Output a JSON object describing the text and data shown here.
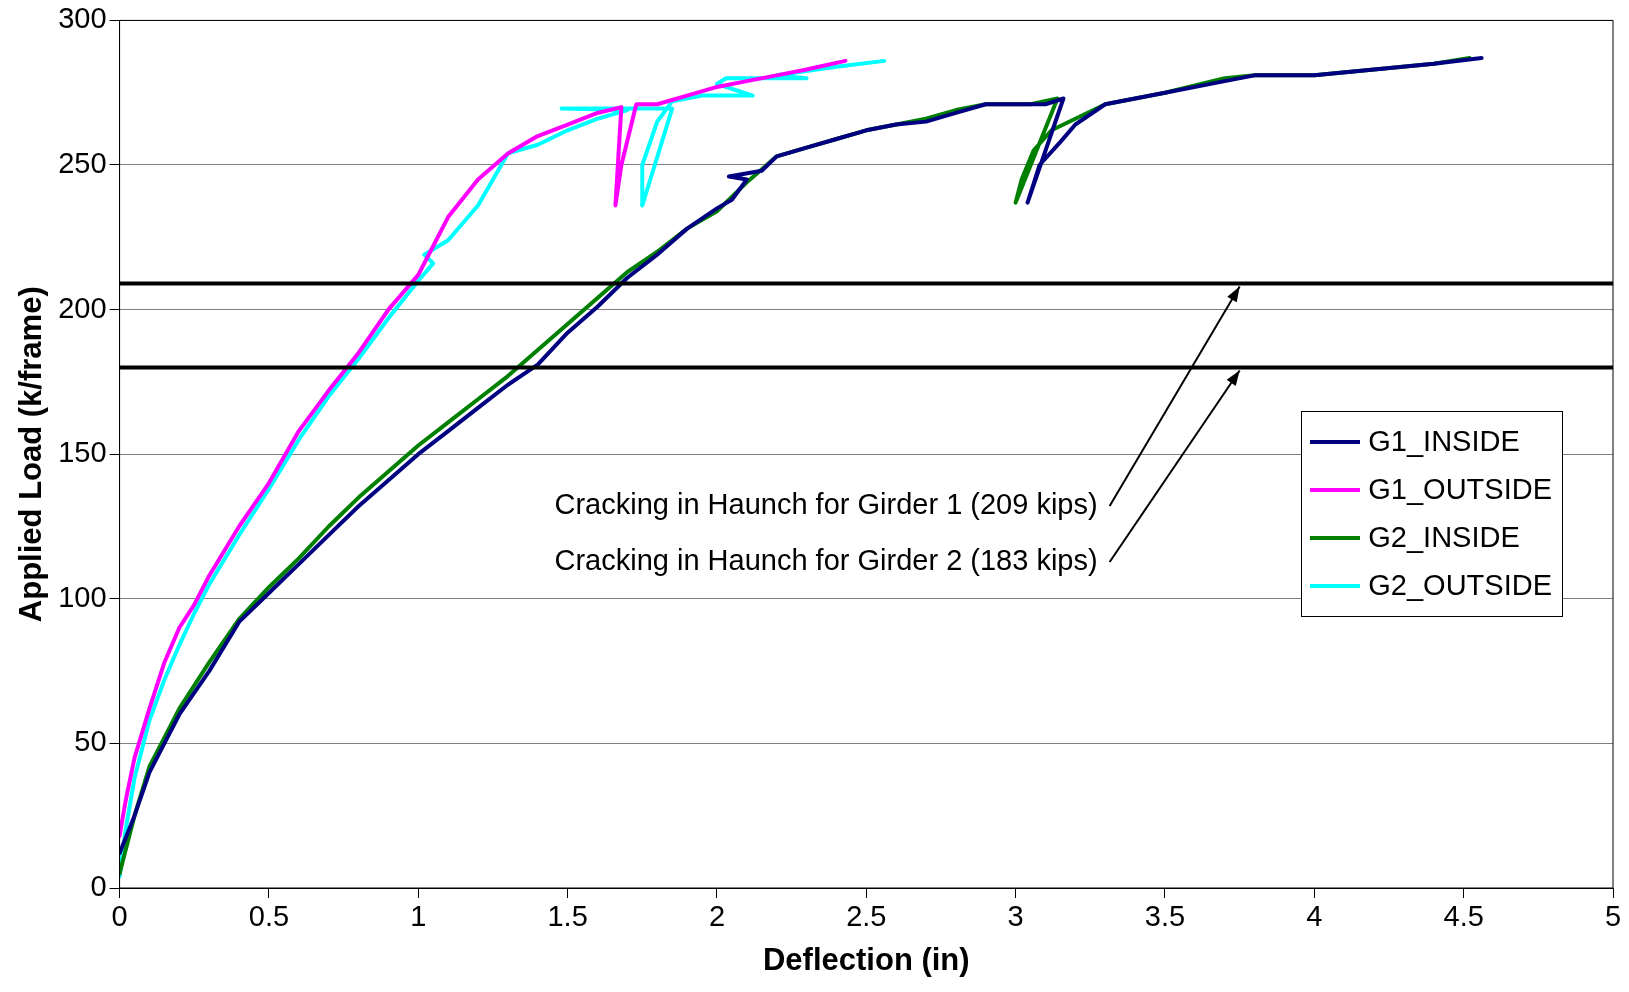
{
  "chart_data": {
    "type": "line",
    "xlabel": "Deflection (in)",
    "ylabel": "Applied Load (k/frame)",
    "xlim": [
      0,
      5
    ],
    "xticks": [
      0,
      0.5,
      1,
      1.5,
      2,
      2.5,
      3,
      3.5,
      4,
      4.5,
      5
    ],
    "ylim": [
      0,
      300
    ],
    "yticks": [
      0,
      50,
      100,
      150,
      200,
      250,
      300
    ],
    "grid": "y",
    "legend": "right",
    "marker": "none",
    "line_style": "solid",
    "series": [
      {
        "name": "G1_INSIDE",
        "color": "#000080",
        "x": [
          0,
          0.05,
          0.1,
          0.15,
          0.2,
          0.3,
          0.4,
          0.5,
          0.6,
          0.7,
          0.8,
          0.9,
          1.0,
          1.1,
          1.2,
          1.3,
          1.4,
          1.5,
          1.6,
          1.7,
          1.8,
          1.9,
          2.0,
          2.05,
          2.1,
          2.04,
          2.15,
          2.2,
          2.3,
          2.4,
          2.5,
          2.6,
          2.7,
          2.8,
          2.9,
          3.1,
          3.16,
          3.04,
          3.08,
          3.15,
          3.2,
          3.3,
          3.5,
          3.7,
          3.8,
          4.0,
          4.2,
          4.4,
          4.56
        ],
        "values": [
          12,
          25,
          40,
          50,
          60,
          75,
          92,
          102,
          112,
          122,
          132,
          141,
          150,
          158,
          166,
          174,
          181,
          192,
          201,
          211,
          219,
          228,
          235,
          238,
          245,
          246,
          248,
          253,
          256,
          259,
          262,
          264,
          265,
          268,
          271,
          271,
          273,
          237,
          250,
          258,
          264,
          271,
          275,
          279,
          281,
          281,
          283,
          285,
          287
        ]
      },
      {
        "name": "G1_OUTSIDE",
        "color": "#ff00ff",
        "x": [
          0,
          0.02,
          0.05,
          0.1,
          0.15,
          0.2,
          0.25,
          0.3,
          0.4,
          0.5,
          0.6,
          0.7,
          0.8,
          0.9,
          1.0,
          1.05,
          1.1,
          1.2,
          1.3,
          1.4,
          1.5,
          1.6,
          1.68,
          1.66,
          1.68,
          1.73,
          1.8,
          1.9,
          2.0,
          2.1,
          2.2,
          2.3,
          2.43
        ],
        "values": [
          18,
          30,
          45,
          62,
          78,
          90,
          98,
          108,
          125,
          140,
          158,
          172,
          185,
          200,
          212,
          222,
          232,
          245,
          254,
          260,
          264,
          268,
          270,
          236,
          250,
          271,
          271,
          274,
          277,
          279,
          281,
          283,
          286
        ]
      },
      {
        "name": "G2_INSIDE",
        "color": "#008000",
        "x": [
          0,
          0.05,
          0.1,
          0.15,
          0.2,
          0.3,
          0.4,
          0.5,
          0.6,
          0.7,
          0.8,
          0.9,
          1.0,
          1.1,
          1.2,
          1.3,
          1.4,
          1.5,
          1.6,
          1.7,
          1.8,
          1.9,
          2.0,
          2.1,
          2.2,
          2.3,
          2.4,
          2.5,
          2.6,
          2.7,
          2.8,
          2.9,
          3.05,
          3.14,
          3.0,
          3.02,
          3.06,
          3.12,
          3.2,
          3.3,
          3.5,
          3.7,
          3.8,
          4.0,
          4.2,
          4.4,
          4.52
        ],
        "values": [
          5,
          25,
          42,
          52,
          62,
          78,
          93,
          104,
          114,
          125,
          135,
          144,
          153,
          161,
          169,
          177,
          186,
          195,
          204,
          213,
          220,
          228,
          234,
          244,
          253,
          256,
          259,
          262,
          264,
          266,
          269,
          271,
          271,
          273,
          237,
          245,
          255,
          262,
          266,
          271,
          275,
          280,
          281,
          281,
          283,
          285,
          287
        ]
      },
      {
        "name": "G2_OUTSIDE",
        "color": "#00ffff",
        "x": [
          0,
          0.02,
          0.05,
          0.1,
          0.15,
          0.2,
          0.25,
          0.3,
          0.4,
          0.5,
          0.6,
          0.7,
          0.8,
          0.9,
          1.0,
          1.05,
          1.02,
          1.1,
          1.2,
          1.25,
          1.3,
          1.4,
          1.5,
          1.6,
          1.7,
          1.48,
          1.85,
          1.75,
          1.75,
          1.8,
          1.85,
          1.95,
          2.12,
          2.0,
          2.03,
          2.3,
          2.2,
          2.4,
          2.56
        ],
        "values": [
          4,
          20,
          38,
          58,
          72,
          84,
          95,
          105,
          122,
          138,
          155,
          170,
          183,
          197,
          210,
          216,
          219,
          224,
          236,
          245,
          254,
          257,
          262,
          266,
          269,
          269.5,
          269.5,
          236,
          250,
          265,
          272,
          274,
          274,
          278,
          280,
          280,
          281,
          284,
          286
        ]
      }
    ],
    "ref_lines": [
      {
        "axis": "y",
        "value": 209,
        "color": "#000000"
      },
      {
        "axis": "y",
        "value": 180,
        "color": "#000000"
      }
    ],
    "annotations": [
      {
        "text": "Cracking in Haunch for Girder 1 (209 kips)",
        "x": 3.75,
        "y": 209
      },
      {
        "text": "Cracking in Haunch for Girder 2 (183 kips)",
        "x": 3.75,
        "y": 180
      }
    ]
  }
}
